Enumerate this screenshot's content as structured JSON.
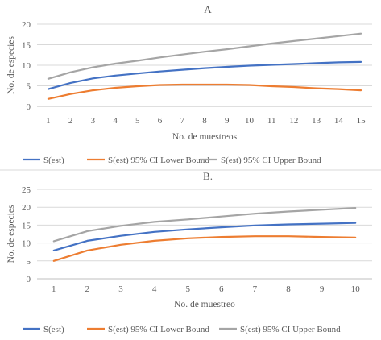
{
  "chart_data": [
    {
      "type": "line",
      "title": "A",
      "xlabel": "No. de muestreos",
      "ylabel": "No. de especies",
      "categories": [
        "1",
        "2",
        "3",
        "4",
        "5",
        "6",
        "7",
        "8",
        "9",
        "10",
        "11",
        "12",
        "13",
        "14",
        "15"
      ],
      "ylim": [
        0,
        20
      ],
      "yticks": [
        "0",
        "5",
        "10",
        "15",
        "20"
      ],
      "grid": true,
      "legend": "bottom",
      "series": [
        {
          "name": "S(est)",
          "color": "#4472c4",
          "values": [
            4.2,
            5.7,
            6.8,
            7.5,
            8.0,
            8.5,
            8.9,
            9.3,
            9.6,
            9.9,
            10.1,
            10.3,
            10.5,
            10.7,
            10.8
          ]
        },
        {
          "name": "S(est) 95% CI Lower Bound",
          "color": "#ed7d31",
          "values": [
            1.8,
            3.0,
            3.9,
            4.5,
            4.9,
            5.2,
            5.3,
            5.3,
            5.3,
            5.2,
            4.9,
            4.7,
            4.4,
            4.2,
            3.9
          ]
        },
        {
          "name": "S(est) 95% CI Upper Bound",
          "color": "#a5a5a5",
          "values": [
            6.7,
            8.3,
            9.5,
            10.4,
            11.1,
            11.9,
            12.6,
            13.3,
            13.9,
            14.6,
            15.3,
            15.9,
            16.5,
            17.1,
            17.7
          ]
        }
      ]
    },
    {
      "type": "line",
      "title": "B.",
      "xlabel": "No. de muestreo",
      "ylabel": "No. de especies",
      "categories": [
        "1",
        "2",
        "3",
        "4",
        "5",
        "6",
        "7",
        "8",
        "9",
        "10"
      ],
      "ylim": [
        0,
        25
      ],
      "yticks": [
        "0",
        "5",
        "10",
        "15",
        "20",
        "25"
      ],
      "grid": true,
      "legend": "bottom",
      "series": [
        {
          "name": "S(est)",
          "color": "#4472c4",
          "values": [
            7.9,
            10.6,
            12.0,
            13.1,
            13.8,
            14.4,
            14.9,
            15.2,
            15.4,
            15.6
          ]
        },
        {
          "name": "S(est) 95% CI Lower Bound",
          "color": "#ed7d31",
          "values": [
            5.0,
            7.9,
            9.5,
            10.6,
            11.3,
            11.7,
            11.9,
            11.9,
            11.7,
            11.5
          ]
        },
        {
          "name": "S(est) 95% CI Upper Bound",
          "color": "#a5a5a5",
          "values": [
            10.5,
            13.3,
            14.8,
            15.9,
            16.6,
            17.4,
            18.2,
            18.8,
            19.3,
            19.8
          ]
        }
      ]
    }
  ]
}
